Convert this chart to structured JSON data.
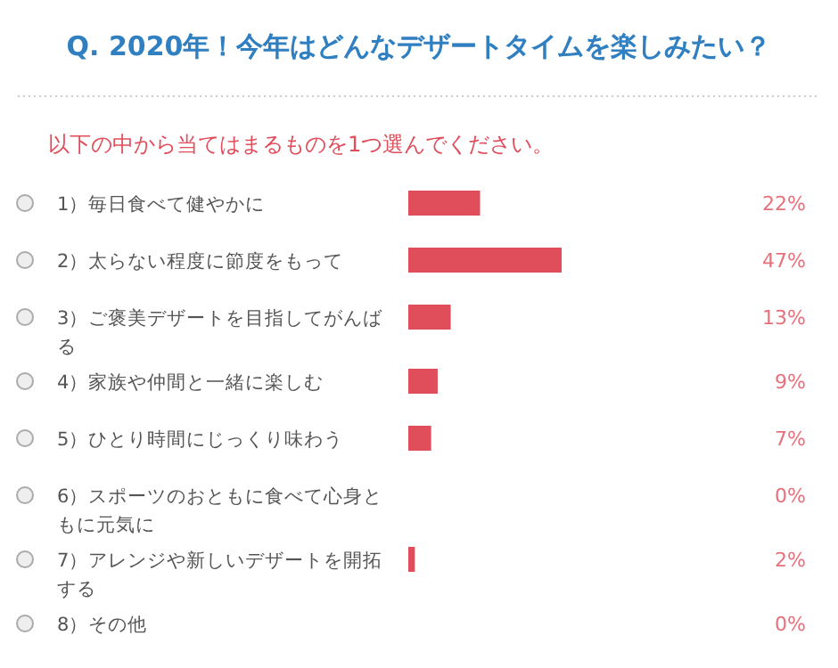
{
  "chart_data": {
    "type": "bar",
    "orientation": "horizontal",
    "title": "Q. 2020年！今年はどんなデザートタイムを楽しみたい？",
    "subtitle": "以下の中から当てはまるものを1つ選んでください。",
    "categories": [
      "1）毎日食べて健やかに",
      "2）太らない程度に節度をもって",
      "3）ご褒美デザートを目指してがんばる",
      "4）家族や仲間と一緒に楽しむ",
      "5）ひとり時間にじっくり味わう",
      "6）スポーツのおともに食べて心身ともに元気に",
      "7）アレンジや新しいデザートを開拓する",
      "8）その他"
    ],
    "values": [
      22,
      47,
      13,
      9,
      7,
      0,
      2,
      0
    ],
    "value_labels": [
      "22%",
      "47%",
      "13%",
      "9%",
      "7%",
      "0%",
      "2%",
      "0%"
    ],
    "color": "#e04e5c"
  }
}
